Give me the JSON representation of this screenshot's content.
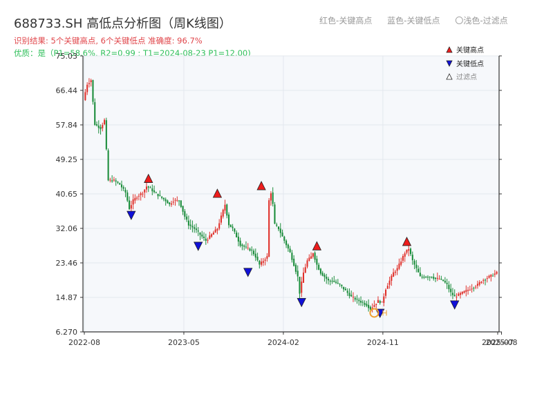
{
  "header": {
    "title": "688733.SH 高低点分析图（周K线图）",
    "result": "识别结果: 5个关键高点, 6个关键低点  准确度: 96.7%",
    "quality": "优质：是（P1=58.6%, R2=0.99 ; T1=2024-08-23 P1=12.00)"
  },
  "top_legend": {
    "red": "红色-关键高点",
    "blue": "蓝色-关键低点",
    "gray": "〇浅色-过滤点"
  },
  "colors": {
    "up": "#e0302a",
    "down": "#1a8c3a",
    "high_marker": "#ee1c1c",
    "low_marker": "#1010d8",
    "filtered_marker": "#f0a030",
    "plot_bg": "#f6f8fb"
  },
  "chart_data": {
    "type": "candlestick",
    "x_ticks": [
      "2022-08",
      "2023-05",
      "2024-02",
      "2024-11",
      "2025-07",
      "2025-08"
    ],
    "y_ticks": [
      "75.03",
      "66.44",
      "57.84",
      "49.25",
      "40.65",
      "32.06",
      "23.46",
      "14.87",
      "6.270"
    ],
    "ylim": [
      6.27,
      75.03
    ],
    "grid": true,
    "legend": {
      "placement": "top-right",
      "items": [
        "关键高点",
        "关键低点",
        "过滤点"
      ]
    },
    "path": [
      [
        0,
        64
      ],
      [
        2,
        68
      ],
      [
        4,
        69
      ],
      [
        6,
        58
      ],
      [
        9,
        57
      ],
      [
        11,
        59
      ],
      [
        13,
        44
      ],
      [
        16,
        44
      ],
      [
        19,
        43
      ],
      [
        22,
        41
      ],
      [
        24,
        37
      ],
      [
        26,
        39
      ],
      [
        28,
        40
      ],
      [
        31,
        41
      ],
      [
        33,
        42.5
      ],
      [
        35,
        42
      ],
      [
        37,
        41
      ],
      [
        40,
        40
      ],
      [
        43,
        39
      ],
      [
        45,
        38
      ],
      [
        47,
        39
      ],
      [
        50,
        39
      ],
      [
        53,
        35
      ],
      [
        55,
        33
      ],
      [
        58,
        32
      ],
      [
        60,
        31
      ],
      [
        62,
        30
      ],
      [
        64,
        29
      ],
      [
        66,
        30
      ],
      [
        68,
        31
      ],
      [
        70,
        32
      ],
      [
        72,
        35
      ],
      [
        74,
        38
      ],
      [
        76,
        33
      ],
      [
        78,
        32
      ],
      [
        80,
        30
      ],
      [
        82,
        28
      ],
      [
        84,
        27.5
      ],
      [
        86,
        27
      ],
      [
        88,
        26.5
      ],
      [
        90,
        25
      ],
      [
        92,
        23
      ],
      [
        94,
        24
      ],
      [
        96,
        25
      ],
      [
        97,
        39
      ],
      [
        98,
        41
      ],
      [
        99,
        38
      ],
      [
        100,
        33
      ],
      [
        102,
        32
      ],
      [
        104,
        30
      ],
      [
        106,
        28
      ],
      [
        108,
        26
      ],
      [
        110,
        23
      ],
      [
        112,
        20
      ],
      [
        113,
        16
      ],
      [
        115,
        21
      ],
      [
        117,
        24
      ],
      [
        119,
        25
      ],
      [
        120,
        26
      ],
      [
        122,
        23
      ],
      [
        124,
        21
      ],
      [
        126,
        20
      ],
      [
        128,
        19
      ],
      [
        130,
        19
      ],
      [
        132,
        18.5
      ],
      [
        134,
        18
      ],
      [
        136,
        17
      ],
      [
        138,
        16
      ],
      [
        140,
        15
      ],
      [
        142,
        14.5
      ],
      [
        144,
        14
      ],
      [
        146,
        13.5
      ],
      [
        148,
        13
      ],
      [
        150,
        12
      ],
      [
        152,
        13
      ],
      [
        154,
        14
      ],
      [
        156,
        13.5
      ],
      [
        158,
        17
      ],
      [
        160,
        19
      ],
      [
        162,
        21
      ],
      [
        164,
        22
      ],
      [
        166,
        24
      ],
      [
        168,
        26
      ],
      [
        170,
        27
      ],
      [
        172,
        24
      ],
      [
        174,
        22
      ],
      [
        176,
        20
      ],
      [
        178,
        20
      ],
      [
        180,
        20
      ],
      [
        182,
        20
      ],
      [
        184,
        19.5
      ],
      [
        186,
        19.5
      ],
      [
        188,
        19
      ],
      [
        190,
        18
      ],
      [
        192,
        16
      ],
      [
        194,
        15
      ],
      [
        196,
        15.5
      ],
      [
        198,
        16
      ],
      [
        200,
        16.5
      ],
      [
        202,
        17
      ],
      [
        204,
        17.5
      ],
      [
        206,
        18
      ],
      [
        208,
        19
      ],
      [
        210,
        19.5
      ],
      [
        212,
        20
      ],
      [
        214,
        20.5
      ],
      [
        216,
        21
      ]
    ],
    "key_highs": [
      {
        "week": 33,
        "value": 43.3
      },
      {
        "week": 69,
        "value": 39.6
      },
      {
        "week": 92,
        "value": 41.5
      },
      {
        "week": 121,
        "value": 26.5
      },
      {
        "week": 168,
        "value": 27.6
      }
    ],
    "key_lows": [
      {
        "week": 24,
        "value": 36.5
      },
      {
        "week": 59,
        "value": 28.8
      },
      {
        "week": 85,
        "value": 22.3
      },
      {
        "week": 113,
        "value": 14.8
      },
      {
        "week": 154,
        "value": 12.1
      },
      {
        "week": 193,
        "value": 14.2
      }
    ],
    "filtered_points": [
      {
        "week": 151,
        "value": 11.0,
        "label": "H"
      }
    ]
  }
}
